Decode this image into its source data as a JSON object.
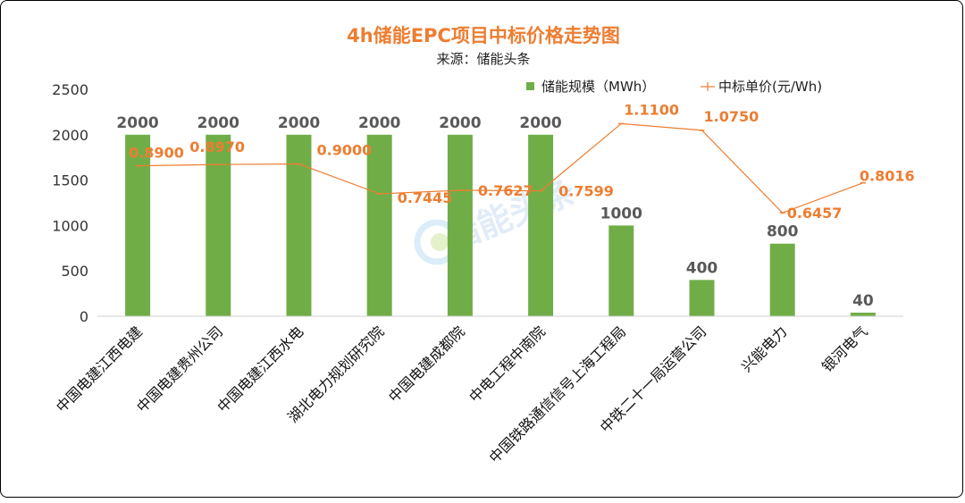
{
  "chart_data": {
    "type": "bar",
    "title": "4h储能EPC项目中标价格走势图",
    "subtitle": "来源：储能头条",
    "categories": [
      "中国电建江西电建",
      "中国电建贵州公司",
      "中国电建江西水电",
      "湖北电力规划研究院",
      "中国电建成都院",
      "中电工程中南院",
      "中国铁路通信信号上海工程局",
      "中铁二十一局运营公司",
      "兴能电力",
      "银河电气"
    ],
    "series": [
      {
        "name": "储能规模（MWh）",
        "type": "bar",
        "values": [
          2000,
          2000,
          2000,
          2000,
          2000,
          2000,
          1000,
          400,
          800,
          40
        ],
        "labels": [
          "2000",
          "2000",
          "2000",
          "2000",
          "2000",
          "2000",
          "1000",
          "400",
          "800",
          "40"
        ]
      },
      {
        "name": "中标单价(元/Wh)",
        "type": "line",
        "values": [
          0.89,
          0.897,
          0.9,
          0.7445,
          0.7627,
          0.7599,
          1.11,
          1.075,
          0.6457,
          0.8016
        ],
        "labels": [
          "0.8900",
          "0.8970",
          "0.9000",
          "0.7445",
          "0.7627",
          "0.7599",
          "1.1100",
          "1.0750",
          "0.6457",
          "0.8016"
        ]
      }
    ],
    "yticks": [
      "0",
      "500",
      "1000",
      "1500",
      "2000",
      "2500"
    ],
    "ylim": [
      0,
      2500
    ],
    "legend": "top-right",
    "grid": false,
    "colors": {
      "title": "#ED7D31",
      "bar": "#70AD47",
      "line": "#ED7D31",
      "bar_label": "#595959"
    },
    "watermark": "储能头条"
  }
}
